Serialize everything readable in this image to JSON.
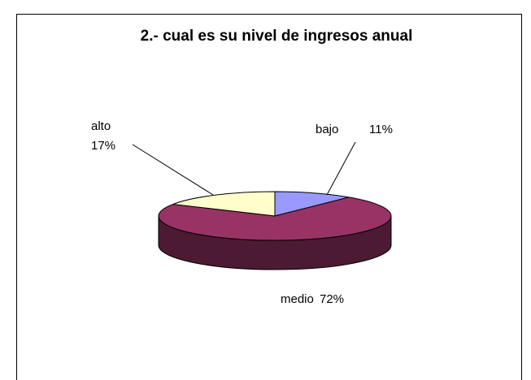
{
  "chart_data": {
    "type": "pie",
    "title": "2.- cual es su nivel de ingresos anual",
    "categories": [
      "bajo",
      "medio",
      "alto"
    ],
    "values": [
      11,
      72,
      17
    ],
    "value_labels": [
      "11%",
      "72%",
      "17%"
    ],
    "colors": [
      "#9999ff",
      "#993366",
      "#ffffcc"
    ]
  }
}
